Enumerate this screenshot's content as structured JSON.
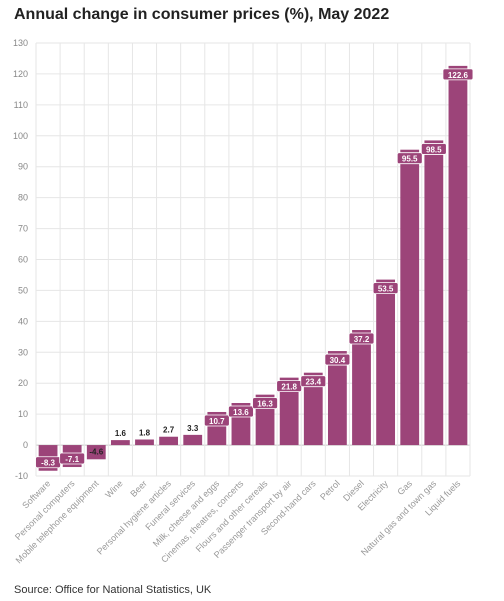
{
  "header": {
    "title": "Annual change in consumer prices (%), May 2022"
  },
  "footer": {
    "source": "Source: Office for National Statistics, UK"
  },
  "chart_data": {
    "type": "bar",
    "title": "Annual change in consumer prices (%), May 2022",
    "categories": [
      "Software",
      "Personal computers",
      "Mobile telephone equipment",
      "Wine",
      "Beer",
      "Personal hygiene articles",
      "Funeral services",
      "Milk, cheese and eggs",
      "Cinemas, theatres, concerts",
      "Flours and other cereals",
      "Passenger transport by air",
      "Second-hand cars",
      "Petrol",
      "Diesel",
      "Electricity",
      "Gas",
      "Natural gas and town gas",
      "Liquid fuels"
    ],
    "values": [
      -8.3,
      -7.1,
      -4.6,
      1.6,
      1.8,
      2.7,
      3.3,
      10.7,
      13.6,
      16.3,
      21.8,
      23.4,
      30.4,
      37.2,
      53.5,
      95.5,
      98.5,
      122.6
    ],
    "ylim": [
      -10,
      130
    ],
    "yticks": [
      -10,
      0,
      10,
      20,
      30,
      40,
      50,
      60,
      70,
      80,
      90,
      100,
      110,
      120,
      130
    ],
    "grid": true,
    "legend": "none",
    "bar_color": "#9c4479",
    "label_box_color": "#9c4479",
    "label_text_color": "#ffffff",
    "outside_label_color": "#222222"
  }
}
